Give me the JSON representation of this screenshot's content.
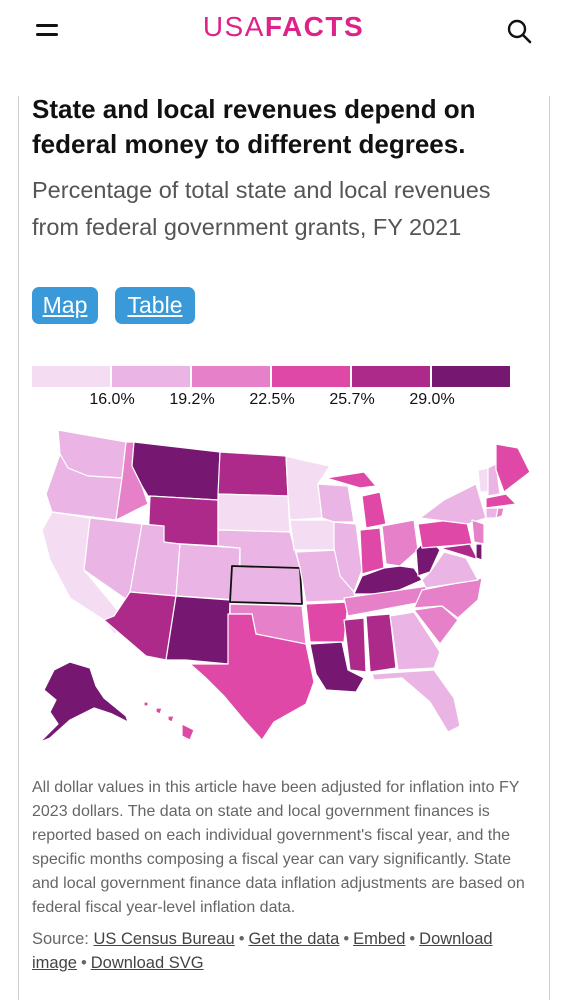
{
  "header": {
    "logo_part1": "USA",
    "logo_part2": "FACTS",
    "brand_color": "#e0218a"
  },
  "article": {
    "title": "State and local revenues depend on federal money to different degrees.",
    "subtitle": "Percentage of total state and local revenues from federal government grants, FY 2021"
  },
  "view_toggle": {
    "map_label": "Map",
    "table_label": "Table",
    "button_color": "#3a9ad9"
  },
  "chart_data": {
    "type": "choropleth",
    "legend": {
      "colors": [
        "#f4ddf3",
        "#eab4e4",
        "#e680c9",
        "#e048a7",
        "#ad2a8a",
        "#761872"
      ],
      "ticks": [
        "16.0%",
        "19.2%",
        "22.5%",
        "25.7%",
        "29.0%"
      ]
    },
    "highlighted_state": "KS"
  },
  "footnote": "All dollar values in this article have been adjusted for inflation into FY 2023 dollars. The data on state and local government finances is reported based on each individual government's fiscal year, and the specific months composing a fiscal year can vary significantly. State and local government finance data inflation adjustments are based on federal fiscal year-level inflation data.",
  "source": {
    "label": "Source:",
    "links": [
      "US Census Bureau",
      "Get the data",
      "Embed",
      "Download image",
      "Download SVG"
    ]
  }
}
